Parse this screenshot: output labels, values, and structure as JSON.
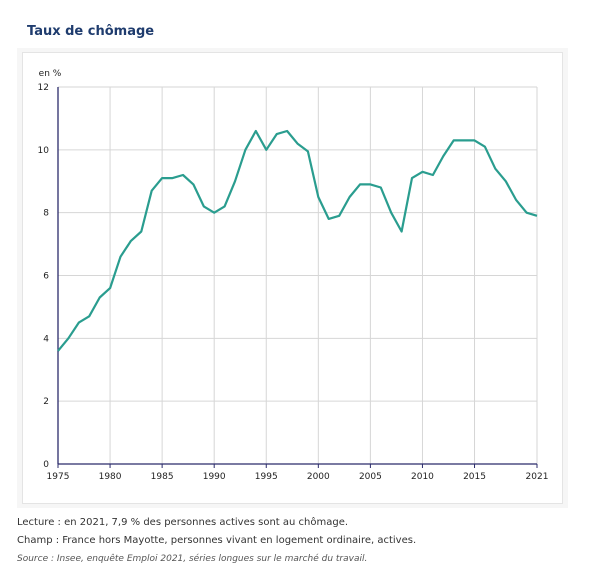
{
  "title": "Taux de chômage",
  "notes": {
    "lecture": "Lecture : en 2021, 7,9 % des personnes actives sont au chômage.",
    "champ": "Champ : France hors Mayotte, personnes vivant en logement ordinaire, actives.",
    "source": "Source : Insee, enquête Emploi 2021, séries longues sur le marché du travail."
  },
  "chart_data": {
    "type": "line",
    "title": "Taux de chômage",
    "ylabel": "en %",
    "xlabel": "",
    "xlim": [
      1975,
      2021
    ],
    "ylim": [
      0,
      12
    ],
    "x_ticks": [
      1975,
      1980,
      1985,
      1990,
      1995,
      2000,
      2005,
      2010,
      2015,
      2021
    ],
    "y_ticks": [
      0,
      2,
      4,
      6,
      8,
      10,
      12
    ],
    "grid": true,
    "line_color": "#2a9d8f",
    "x": [
      1975,
      1976,
      1977,
      1978,
      1979,
      1980,
      1981,
      1982,
      1983,
      1984,
      1985,
      1986,
      1987,
      1988,
      1989,
      1990,
      1991,
      1992,
      1993,
      1994,
      1995,
      1996,
      1997,
      1998,
      1999,
      2000,
      2001,
      2002,
      2003,
      2004,
      2005,
      2006,
      2007,
      2008,
      2009,
      2010,
      2011,
      2012,
      2013,
      2014,
      2015,
      2016,
      2017,
      2018,
      2019,
      2020,
      2021
    ],
    "series": [
      {
        "values": [
          3.6,
          4.0,
          4.5,
          4.7,
          5.3,
          5.6,
          6.6,
          7.1,
          7.4,
          8.7,
          9.1,
          9.1,
          9.2,
          8.9,
          8.2,
          8.0,
          8.2,
          9.0,
          10.0,
          10.6,
          10.0,
          10.5,
          10.6,
          10.2,
          9.95,
          8.5,
          7.8,
          7.9,
          8.5,
          8.9,
          8.9,
          8.8,
          8.0,
          7.4,
          9.1,
          9.3,
          9.2,
          9.8,
          10.3,
          10.3,
          10.3,
          10.1,
          9.4,
          9.0,
          8.4,
          8.0,
          7.9
        ]
      }
    ]
  }
}
